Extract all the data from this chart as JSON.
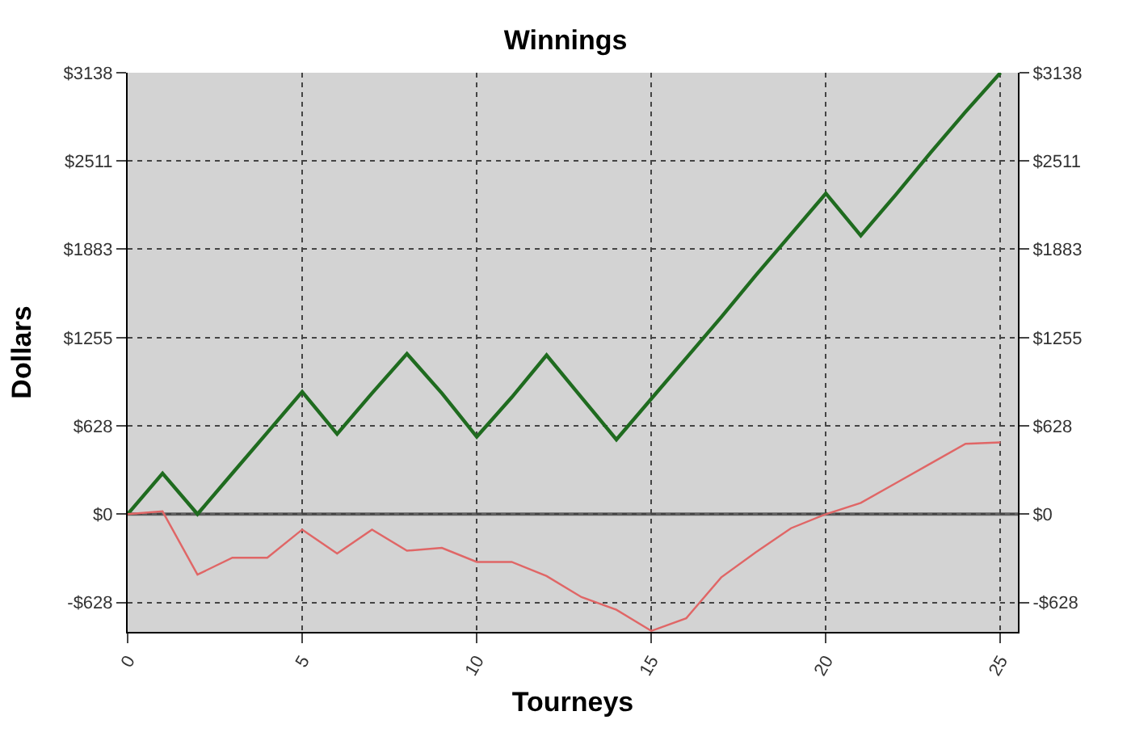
{
  "chart_data": {
    "type": "line",
    "title": "Winnings",
    "xlabel": "Tourneys",
    "ylabel": "Dollars",
    "x": [
      0,
      1,
      2,
      3,
      4,
      5,
      6,
      7,
      8,
      9,
      10,
      11,
      12,
      13,
      14,
      15,
      16,
      17,
      18,
      19,
      20,
      21,
      22,
      23,
      24,
      25
    ],
    "series": [
      {
        "color": "#1f6b1f",
        "values": [
          0,
          290,
          0,
          290,
          580,
          870,
          570,
          860,
          1140,
          860,
          550,
          830,
          1130,
          830,
          530,
          820,
          1110,
          1400,
          1700,
          1990,
          2280,
          1980,
          2270,
          2570,
          2860,
          3138
        ]
      },
      {
        "color": "#e06666",
        "values": [
          0,
          20,
          -430,
          -310,
          -310,
          -110,
          -280,
          -110,
          -260,
          -240,
          -340,
          -340,
          -440,
          -590,
          -680,
          -830,
          -740,
          -450,
          -270,
          -100,
          0,
          80,
          220,
          360,
          500,
          510
        ]
      }
    ],
    "xlim": [
      0,
      25.5
    ],
    "xticks": [
      0,
      5,
      10,
      15,
      20,
      25
    ],
    "ylim": [
      -837,
      3138
    ],
    "yticks": [
      {
        "value": -628,
        "label": "-$628"
      },
      {
        "value": 0,
        "label": "$0"
      },
      {
        "value": 628,
        "label": "$628"
      },
      {
        "value": 1255,
        "label": "$1255"
      },
      {
        "value": 1883,
        "label": "$1883"
      },
      {
        "value": 2511,
        "label": "$2511"
      },
      {
        "value": 3138,
        "label": "$3138"
      }
    ],
    "y2lim": [
      -837,
      3138
    ],
    "y2ticks": [
      {
        "value": -628,
        "label": "-$628"
      },
      {
        "value": 0,
        "label": "$0"
      },
      {
        "value": 628,
        "label": "$628"
      },
      {
        "value": 1255,
        "label": "$1255"
      },
      {
        "value": 1883,
        "label": "$1883"
      },
      {
        "value": 2511,
        "label": "$2511"
      },
      {
        "value": 3138,
        "label": "$3138"
      }
    ],
    "ref_lines": [
      {
        "axis": "y",
        "value": 0,
        "color": "#606060"
      }
    ],
    "grid": true,
    "marker": "none",
    "line_style": "solid"
  }
}
